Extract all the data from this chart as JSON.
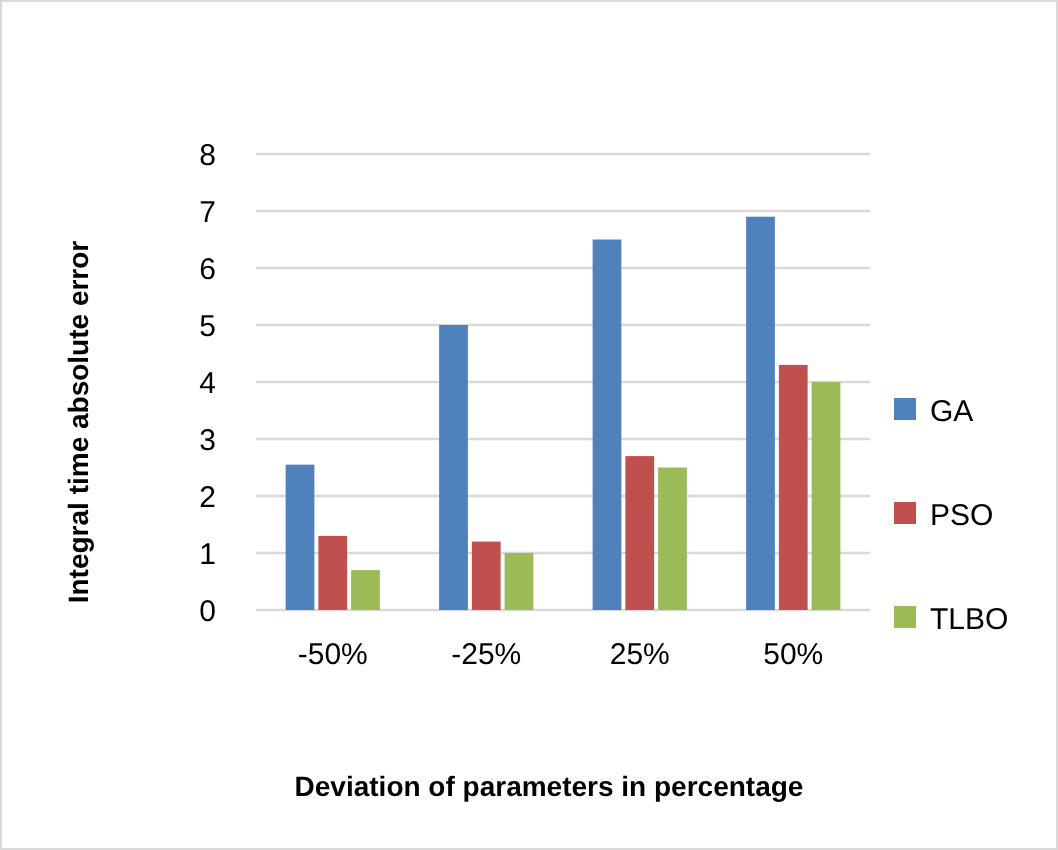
{
  "chart_data": {
    "type": "bar",
    "xlabel": "Deviation of parameters in  percentage",
    "ylabel": "Integral time absolute error",
    "categories": [
      "-50%",
      "-25%",
      "25%",
      "50%"
    ],
    "series": [
      {
        "name": "GA",
        "color": "#4f81bd",
        "values": [
          2.55,
          5,
          6.5,
          6.9
        ]
      },
      {
        "name": "PSO",
        "color": "#c0504d",
        "values": [
          1.3,
          1.2,
          2.7,
          4.3
        ]
      },
      {
        "name": "TLBO",
        "color": "#9bbb59",
        "values": [
          0.7,
          1.0,
          2.5,
          4.0
        ]
      }
    ],
    "ylim": [
      0,
      8
    ],
    "yticks": [
      0,
      1,
      2,
      3,
      4,
      5,
      6,
      7,
      8
    ],
    "grid": "y",
    "legend": "right"
  }
}
